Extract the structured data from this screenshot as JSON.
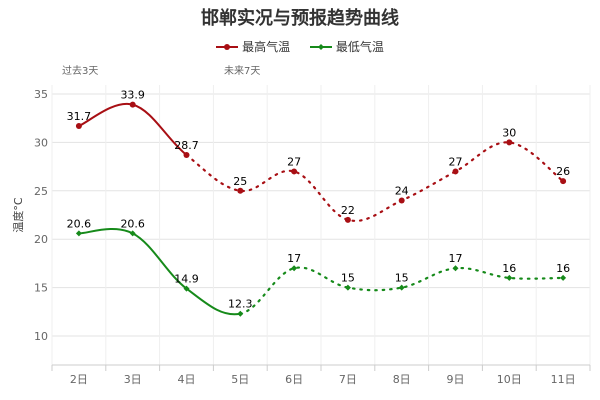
{
  "chart_data": {
    "type": "line",
    "title": "邯郸实况与预报趋势曲线",
    "ylabel": "温度°C",
    "xlabel": "",
    "categories": [
      "2日",
      "3日",
      "4日",
      "5日",
      "6日",
      "7日",
      "8日",
      "9日",
      "10日",
      "11日"
    ],
    "yticks": [
      10,
      15,
      20,
      25,
      30,
      35
    ],
    "ylim": [
      7,
      36
    ],
    "grid": true,
    "legend_placement": "top",
    "annotations": [
      "过去3天",
      "未来7天"
    ],
    "series": [
      {
        "name": "最高气温",
        "color": "#a80f14",
        "values": [
          31.7,
          33.9,
          28.7,
          25,
          27,
          22,
          24,
          27,
          30,
          26
        ],
        "solid_points": 3
      },
      {
        "name": "最低气温",
        "color": "#168a1a",
        "values": [
          20.6,
          20.6,
          14.9,
          12.3,
          17,
          15,
          15,
          17,
          16,
          16
        ],
        "solid_points": 4
      }
    ]
  }
}
